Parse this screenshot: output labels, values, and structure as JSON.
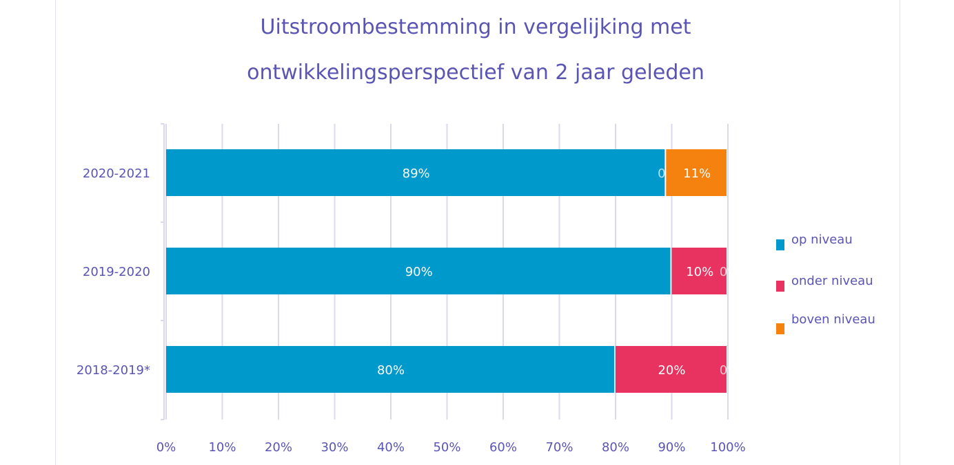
{
  "chart_data": {
    "type": "bar",
    "orientation": "horizontal",
    "stacked": true,
    "title": "Uitstroombestemming in vergelijking met ontwikkelingsperspectief van 2 jaar geleden",
    "title_lines": [
      "Uitstroombestemming in vergelijking met",
      "ontwikkelingsperspectief van 2 jaar geleden"
    ],
    "categories": [
      "2020-2021",
      "2019-2020",
      "2018-2019*"
    ],
    "series": [
      {
        "name": "op niveau",
        "color": "#0099cc",
        "values": [
          89,
          90,
          80
        ],
        "labels": [
          "89%",
          "90%",
          "80%"
        ]
      },
      {
        "name": "onder niveau",
        "color": "#e8325f",
        "values": [
          0,
          10,
          20
        ],
        "labels": [
          "0%",
          "10%",
          "20%"
        ]
      },
      {
        "name": "boven niveau",
        "color": "#f5820f",
        "values": [
          11,
          0,
          0
        ],
        "labels": [
          "11%",
          "0%",
          "0%"
        ]
      }
    ],
    "xlim": [
      0,
      100
    ],
    "xticks": [
      "0%",
      "10%",
      "20%",
      "30%",
      "40%",
      "50%",
      "60%",
      "70%",
      "80%",
      "90%",
      "100%"
    ],
    "grid": true,
    "legend_position": "right"
  }
}
